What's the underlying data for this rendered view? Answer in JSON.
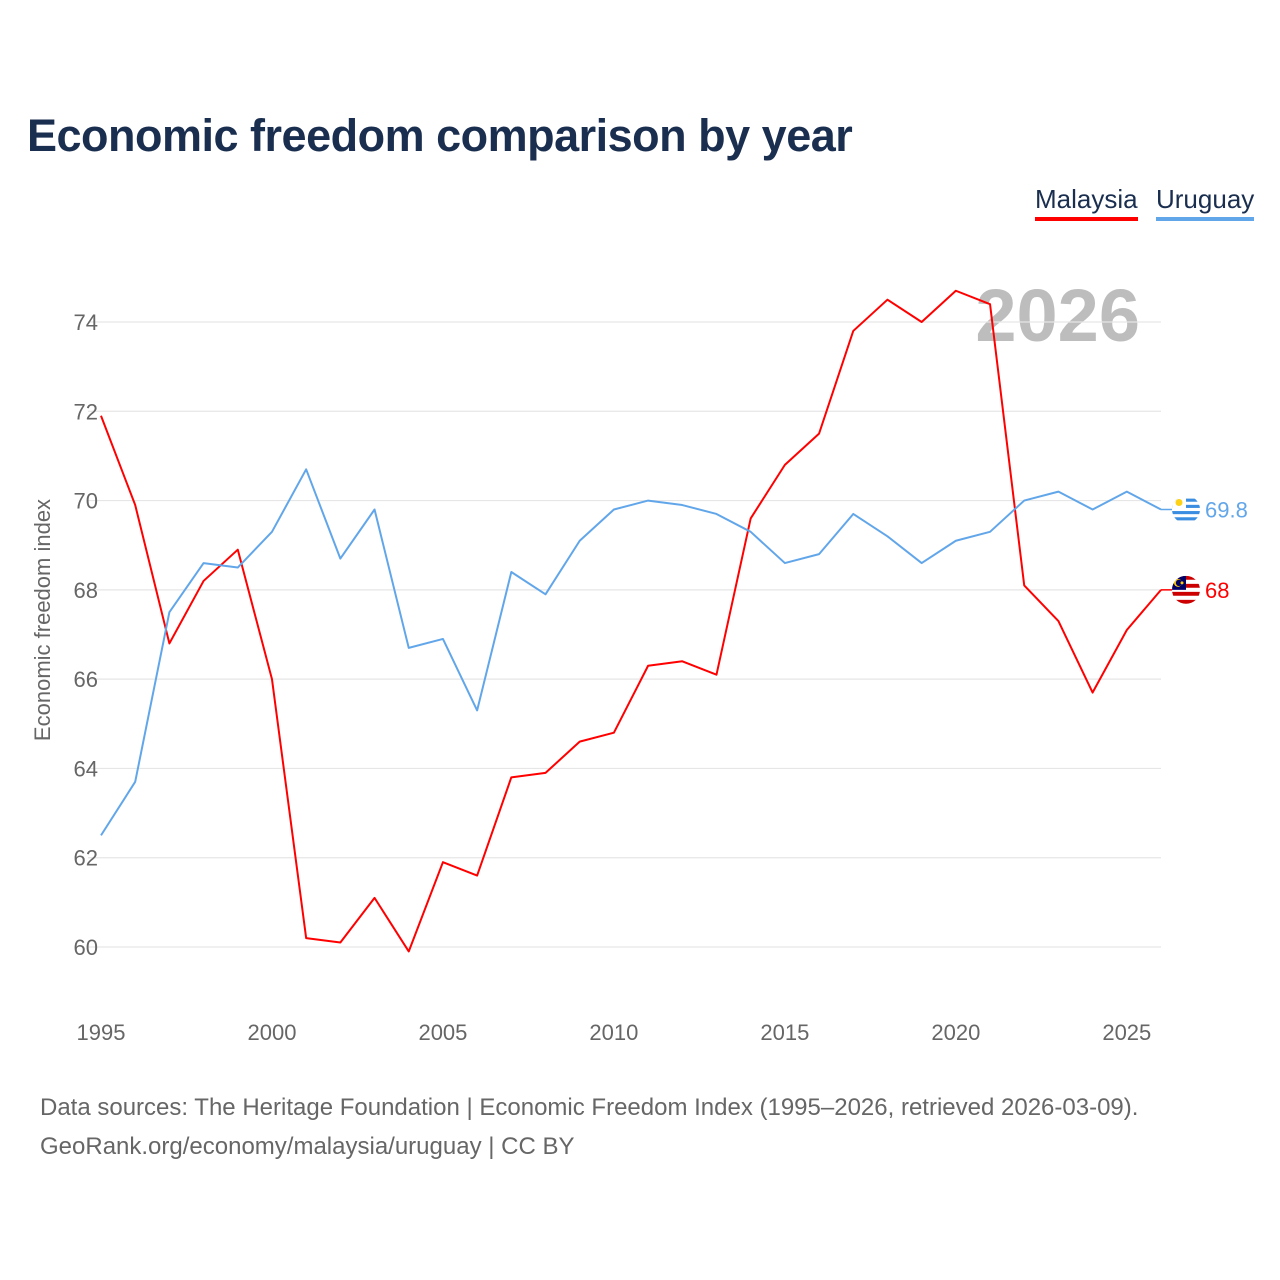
{
  "title": "Economic freedom comparison by year",
  "source_line1": "Data sources: The Heritage Foundation | Economic Freedom Index (1995–2026, retrieved 2026-03-09).",
  "source_line2": "GeoRank.org/economy/malaysia/uruguay | CC BY",
  "chart_data": {
    "type": "line",
    "title": "Economic freedom comparison by year",
    "xlabel": "",
    "ylabel": "Economic freedom index",
    "year_watermark": "2026",
    "xlim": [
      1995,
      2026
    ],
    "ylim": [
      59,
      75.5
    ],
    "xticks": [
      1995,
      2000,
      2005,
      2010,
      2015,
      2020,
      2025
    ],
    "yticks": [
      60,
      62,
      64,
      66,
      68,
      70,
      72,
      74
    ],
    "grid": "horizontal",
    "legend": "top-right",
    "x": [
      1995,
      1996,
      1997,
      1998,
      1999,
      2000,
      2001,
      2002,
      2003,
      2004,
      2005,
      2006,
      2007,
      2008,
      2009,
      2010,
      2011,
      2012,
      2013,
      2014,
      2015,
      2016,
      2017,
      2018,
      2019,
      2020,
      2021,
      2022,
      2023,
      2024,
      2025,
      2026
    ],
    "series": [
      {
        "name": "Malaysia",
        "color": "#ff0000",
        "end_label": "68",
        "flag": "malaysia-flag",
        "values": [
          71.9,
          69.9,
          66.8,
          68.2,
          68.9,
          66.0,
          60.2,
          60.1,
          61.1,
          59.9,
          61.9,
          61.6,
          63.8,
          63.9,
          64.6,
          64.8,
          66.3,
          66.4,
          66.1,
          69.6,
          70.8,
          71.5,
          73.8,
          74.5,
          74.0,
          74.7,
          74.4,
          68.1,
          67.3,
          65.7,
          67.1,
          68.0
        ]
      },
      {
        "name": "Uruguay",
        "color": "#62a6ea",
        "end_label": "69.8",
        "flag": "uruguay-flag",
        "values": [
          62.5,
          63.7,
          67.5,
          68.6,
          68.5,
          69.3,
          70.7,
          68.7,
          69.8,
          66.7,
          66.9,
          65.3,
          68.4,
          67.9,
          69.1,
          69.8,
          70.0,
          69.9,
          69.7,
          69.3,
          68.6,
          68.8,
          69.7,
          69.2,
          68.6,
          69.1,
          69.3,
          70.0,
          70.2,
          69.8,
          70.2,
          69.8
        ]
      }
    ]
  }
}
